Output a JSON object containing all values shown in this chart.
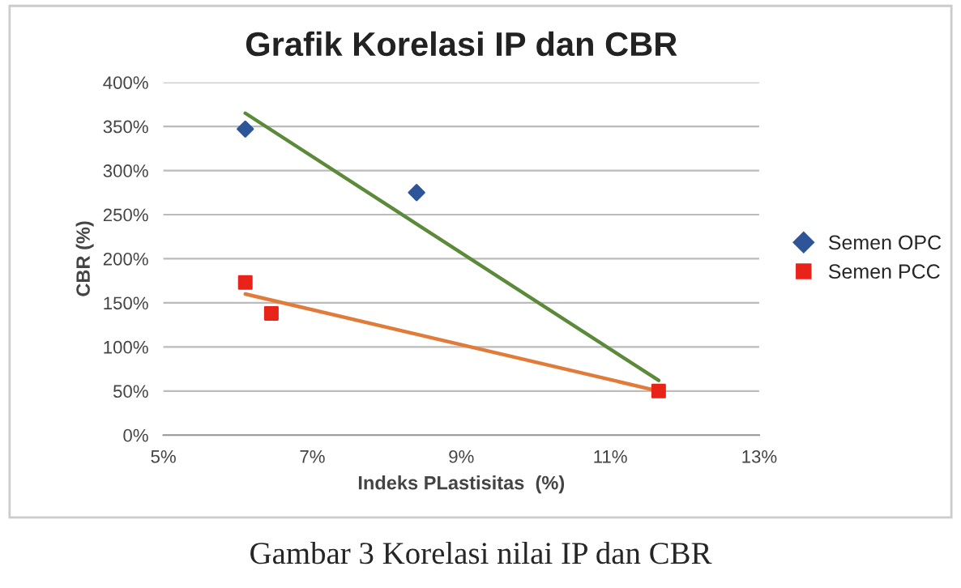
{
  "chart_data": {
    "type": "scatter",
    "title": "Grafik Korelasi IP dan CBR",
    "xlabel": "Indeks PLastisitas  (%)",
    "ylabel": "CBR (%)",
    "annotations": [
      "Gambar 3 Korelasi nilai IP dan CBR"
    ],
    "series": [
      {
        "name": "Semen OPC",
        "color": "#2e5597",
        "marker": "diamond",
        "x": [
          6.1,
          8.4
        ],
        "values": [
          347,
          275
        ]
      },
      {
        "name": "Semen PCC",
        "color": "#e8231a",
        "marker": "square",
        "x": [
          6.1,
          6.45,
          11.65
        ],
        "values": [
          173,
          138,
          50
        ]
      },
      {
        "type": "line",
        "color": "#5a8a3a",
        "marker": "none",
        "x": [
          6.1,
          11.65
        ],
        "values": [
          365,
          62
        ]
      },
      {
        "type": "line",
        "color": "#e07b39",
        "marker": "none",
        "x": [
          6.1,
          11.65
        ],
        "values": [
          160,
          50
        ]
      }
    ],
    "xlim": [
      5,
      13
    ],
    "xticks": [
      {
        "value": 5,
        "label": "5%"
      },
      {
        "value": 7,
        "label": "7%"
      },
      {
        "value": 9,
        "label": "9%"
      },
      {
        "value": 11,
        "label": "11%"
      },
      {
        "value": 13,
        "label": "13%"
      }
    ],
    "ylim": [
      0,
      400
    ],
    "yticks": [
      {
        "value": 0,
        "label": "0%"
      },
      {
        "value": 50,
        "label": "50%"
      },
      {
        "value": 100,
        "label": "100%"
      },
      {
        "value": 150,
        "label": "150%"
      },
      {
        "value": 200,
        "label": "200%"
      },
      {
        "value": 250,
        "label": "250%"
      },
      {
        "value": 300,
        "label": "300%"
      },
      {
        "value": 350,
        "label": "350%"
      },
      {
        "value": 400,
        "label": "400%"
      }
    ],
    "grid": "y",
    "legend": "right"
  }
}
